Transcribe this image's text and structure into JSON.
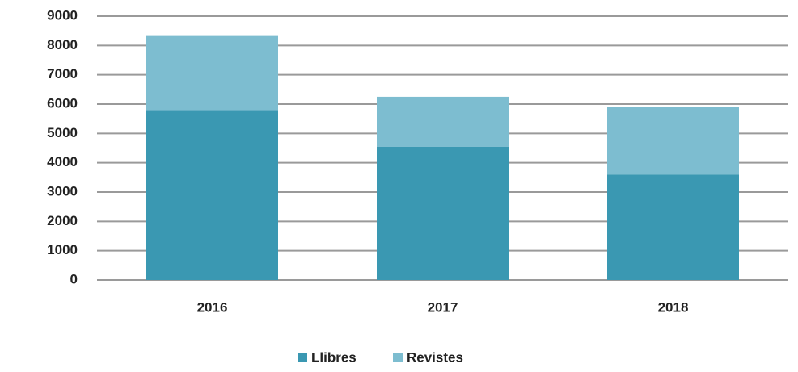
{
  "chart_data": {
    "type": "stacked_bar",
    "categories": [
      "2016",
      "2017",
      "2018"
    ],
    "series": [
      {
        "name": "Llibres",
        "color": "#3a98b2",
        "values": [
          5800,
          4550,
          3600
        ]
      },
      {
        "name": "Revistes",
        "color": "#7dbdd0",
        "values": [
          2550,
          1700,
          2300
        ]
      }
    ],
    "ylim": [
      0,
      9000
    ],
    "yticks": [
      0,
      1000,
      2000,
      3000,
      4000,
      5000,
      6000,
      7000,
      8000,
      9000
    ],
    "grid": true,
    "legend": "bottom"
  }
}
